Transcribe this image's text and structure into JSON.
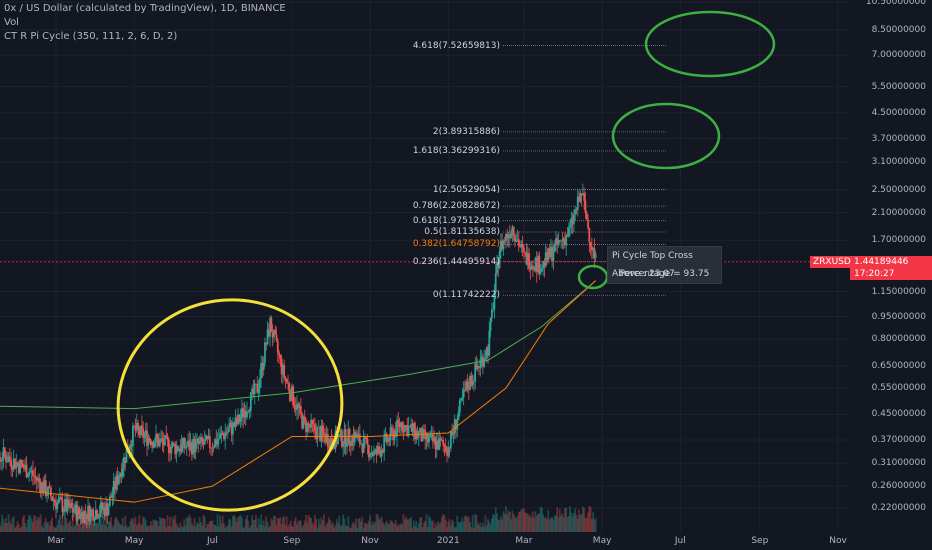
{
  "header": {
    "title": "0x / US Dollar (calculated by TradingView), 1D, BINANCE",
    "volume_label": "Vol",
    "indicator": "CT R Pi Cycle (350, 111, 2, 6, D, 2)"
  },
  "colors": {
    "background": "#131722",
    "up": "#26a69a",
    "down": "#ef5350",
    "ma_long": "#4caf50",
    "ma_short": "#f57c00",
    "highlight_yellow": "#f5e03a",
    "highlight_green": "#3cb043",
    "price_tag": "#f23645"
  },
  "price_tag": {
    "symbol": "ZRXUSD",
    "price": "1.44189446",
    "countdown": "17:20:27"
  },
  "tooltip": {
    "line1": "Pi Cycle Top Cross Above : 23.07",
    "line2": "Percentage = 93.75"
  },
  "fib_levels": [
    {
      "label": "4.618(7.52659813)",
      "value": 7.52659813
    },
    {
      "label": "2(3.89315886)",
      "value": 3.89315886
    },
    {
      "label": "1.618(3.36299316)",
      "value": 3.36299316
    },
    {
      "label": "1(2.50529054)",
      "value": 2.50529054
    },
    {
      "label": "0.786(2.20828672)",
      "value": 2.20828672
    },
    {
      "label": "0.618(1.97512484)",
      "value": 1.97512484
    },
    {
      "label": "0.5(1.81135638)",
      "value": 1.81135638
    },
    {
      "label": "0.382(1.64758792)",
      "value": 1.64758792,
      "color": "#f57c00"
    },
    {
      "label": "0.236(1.44495914)",
      "value": 1.44495914
    },
    {
      "label": "0(1.11742222)",
      "value": 1.11742222
    }
  ],
  "chart_data": {
    "type": "candlestick",
    "y_scale": "log",
    "y_tick_labels": [
      "10.50000000",
      "8.50000000",
      "7.00000000",
      "5.50000000",
      "4.50000000",
      "3.70000000",
      "3.10000000",
      "2.50000000",
      "2.10000000",
      "1.70000000",
      "1.15000000",
      "0.95000000",
      "0.80000000",
      "0.65000000",
      "0.55000000",
      "0.45000000",
      "0.37000000",
      "0.31000000",
      "0.26000000",
      "0.22000000"
    ],
    "y_tick_values": [
      10.5,
      8.5,
      7.0,
      5.5,
      4.5,
      3.7,
      3.1,
      2.5,
      2.1,
      1.7,
      1.15,
      0.95,
      0.8,
      0.65,
      0.55,
      0.45,
      0.37,
      0.31,
      0.26,
      0.22
    ],
    "x_tick_labels": [
      "Mar",
      "May",
      "Jul",
      "Sep",
      "Nov",
      "2021",
      "Mar",
      "May",
      "Jul",
      "Sep",
      "Nov"
    ],
    "x_tick_dates": [
      "2020-03-01",
      "2020-05-01",
      "2020-07-01",
      "2020-09-01",
      "2020-11-01",
      "2021-01-01",
      "2021-03-01",
      "2021-05-01",
      "2021-07-01",
      "2021-09-01",
      "2021-11-01"
    ],
    "price_path": [
      {
        "date": "2020-01-01",
        "close": 0.28
      },
      {
        "date": "2020-01-20",
        "close": 0.33
      },
      {
        "date": "2020-02-10",
        "close": 0.29
      },
      {
        "date": "2020-03-01",
        "close": 0.23
      },
      {
        "date": "2020-03-20",
        "close": 0.21
      },
      {
        "date": "2020-04-10",
        "close": 0.22
      },
      {
        "date": "2020-05-01",
        "close": 0.4
      },
      {
        "date": "2020-05-10",
        "close": 0.38
      },
      {
        "date": "2020-06-01",
        "close": 0.35
      },
      {
        "date": "2020-07-01",
        "close": 0.36
      },
      {
        "date": "2020-07-20",
        "close": 0.42
      },
      {
        "date": "2020-08-05",
        "close": 0.55
      },
      {
        "date": "2020-08-15",
        "close": 0.9
      },
      {
        "date": "2020-08-25",
        "close": 0.62
      },
      {
        "date": "2020-09-10",
        "close": 0.42
      },
      {
        "date": "2020-10-01",
        "close": 0.37
      },
      {
        "date": "2020-10-20",
        "close": 0.38
      },
      {
        "date": "2020-11-05",
        "close": 0.33
      },
      {
        "date": "2020-11-25",
        "close": 0.42
      },
      {
        "date": "2020-12-15",
        "close": 0.37
      },
      {
        "date": "2021-01-01",
        "close": 0.35
      },
      {
        "date": "2021-01-15",
        "close": 0.55
      },
      {
        "date": "2021-02-01",
        "close": 0.75
      },
      {
        "date": "2021-02-10",
        "close": 1.6
      },
      {
        "date": "2021-02-20",
        "close": 1.9
      },
      {
        "date": "2021-03-01",
        "close": 1.5
      },
      {
        "date": "2021-03-15",
        "close": 1.4
      },
      {
        "date": "2021-03-25",
        "close": 1.6
      },
      {
        "date": "2021-04-05",
        "close": 1.8
      },
      {
        "date": "2021-04-15",
        "close": 2.45
      },
      {
        "date": "2021-04-22",
        "close": 1.7
      },
      {
        "date": "2021-04-26",
        "close": 1.44
      }
    ],
    "ma_long": [
      {
        "date": "2020-01-01",
        "value": 0.48
      },
      {
        "date": "2020-05-01",
        "value": 0.47
      },
      {
        "date": "2020-09-01",
        "value": 0.53
      },
      {
        "date": "2020-12-01",
        "value": 0.61
      },
      {
        "date": "2021-02-01",
        "value": 0.68
      },
      {
        "date": "2021-03-15",
        "value": 0.88
      },
      {
        "date": "2021-04-26",
        "value": 1.25
      }
    ],
    "ma_short": [
      {
        "date": "2020-01-01",
        "value": 0.26
      },
      {
        "date": "2020-05-01",
        "value": 0.23
      },
      {
        "date": "2020-07-01",
        "value": 0.26
      },
      {
        "date": "2020-09-01",
        "value": 0.38
      },
      {
        "date": "2020-11-01",
        "value": 0.38
      },
      {
        "date": "2021-01-01",
        "value": 0.39
      },
      {
        "date": "2021-02-15",
        "value": 0.55
      },
      {
        "date": "2021-03-20",
        "value": 0.9
      },
      {
        "date": "2021-04-26",
        "value": 1.25
      }
    ]
  }
}
